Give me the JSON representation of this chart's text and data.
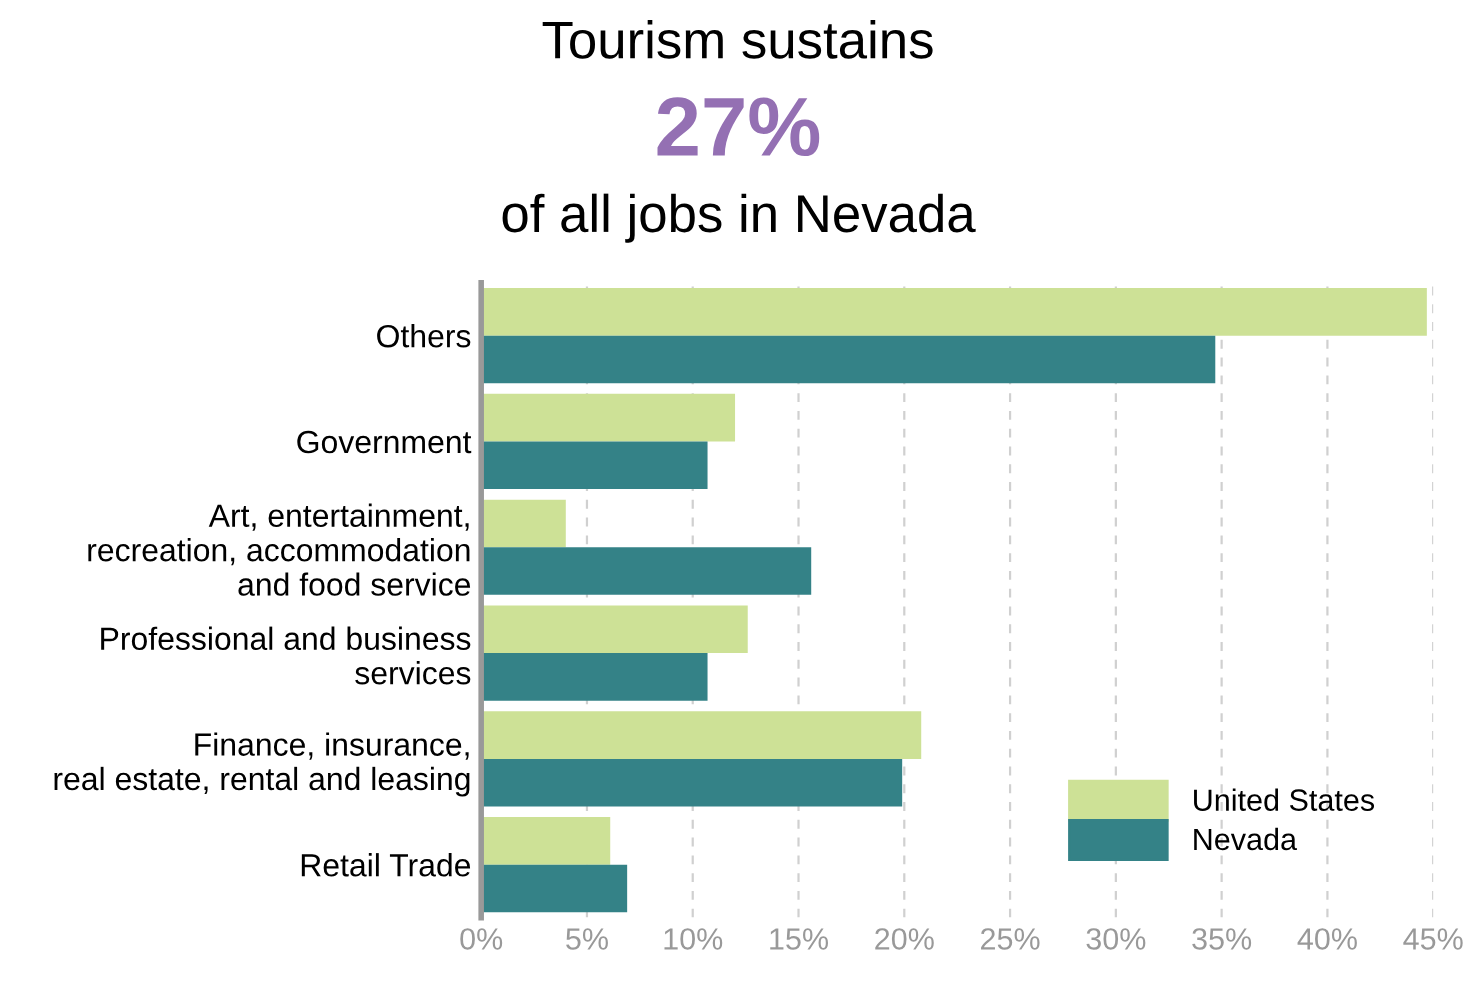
{
  "chart_data": {
    "type": "bar",
    "orientation": "horizontal",
    "title": "Tourism sustains",
    "subtitle": "27%",
    "annotations": [
      "of all jobs in Nevada"
    ],
    "categories": [
      "Others",
      "Government",
      "Art, entertainment,\nrecreation, accommodation\nand food service",
      "Professional and business\nservices",
      "Finance, insurance,\nreal estate, rental and leasing",
      "Retail Trade"
    ],
    "series": [
      {
        "name": "United States",
        "color": "#cde196",
        "values": [
          44.7,
          12.0,
          4.0,
          12.6,
          20.8,
          6.1
        ]
      },
      {
        "name": "Nevada",
        "color": "#348287",
        "values": [
          34.7,
          10.7,
          15.6,
          10.7,
          19.9,
          6.9
        ]
      }
    ],
    "xlim": [
      0,
      45
    ],
    "xticks": [
      {
        "value": 0,
        "label": "0%"
      },
      {
        "value": 5,
        "label": "5%"
      },
      {
        "value": 10,
        "label": "10%"
      },
      {
        "value": 15,
        "label": "15%"
      },
      {
        "value": 20,
        "label": "20%"
      },
      {
        "value": 25,
        "label": "25%"
      },
      {
        "value": 30,
        "label": "30%"
      },
      {
        "value": 35,
        "label": "35%"
      },
      {
        "value": 40,
        "label": "40%"
      },
      {
        "value": 45,
        "label": "45%"
      }
    ],
    "grid": "x",
    "legend": "bottom right"
  }
}
